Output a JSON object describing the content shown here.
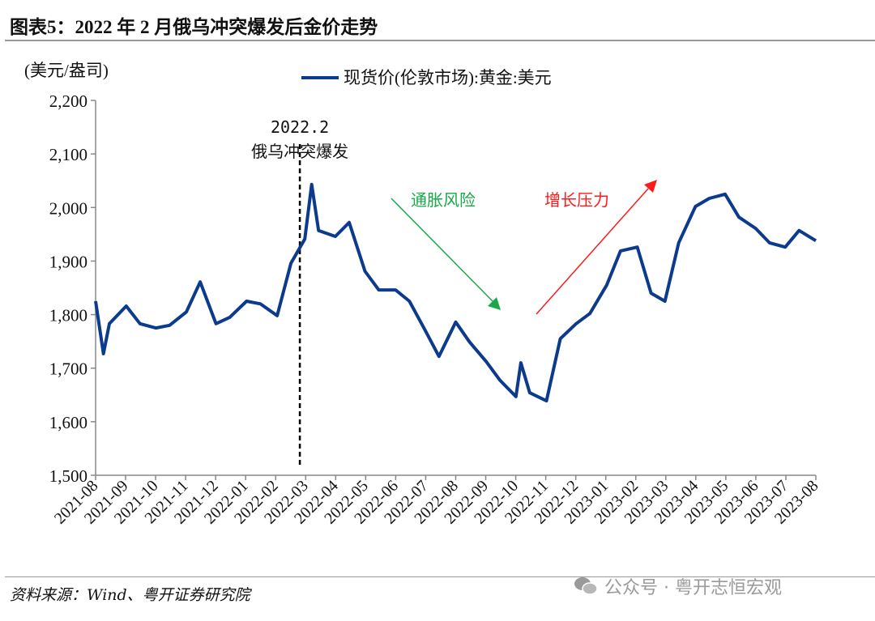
{
  "header": {
    "title": "图表5：2022 年 2 月俄乌冲突爆发后金价走势"
  },
  "footer": {
    "source": "资料来源：Wind、粤开证券研究院",
    "watermark": "公众号 · 粤开志恒宏观",
    "watermark_icon": "wechat-icon"
  },
  "chart_data": {
    "type": "line",
    "title": "",
    "ylabel": "(美元/盎司)",
    "xlabel": "",
    "ylim": [
      1500,
      2200
    ],
    "yticks": [
      1500,
      1600,
      1700,
      1800,
      1900,
      2000,
      2100,
      2200
    ],
    "ytick_labels": [
      "1,500",
      "1,600",
      "1,700",
      "1,800",
      "1,900",
      "2,000",
      "2,100",
      "2,200"
    ],
    "xtick_labels": [
      "2021-08",
      "2021-09",
      "2021-10",
      "2021-11",
      "2021-12",
      "2022-01",
      "2022-02",
      "2022-03",
      "2022-04",
      "2022-05",
      "2022-06",
      "2022-07",
      "2022-08",
      "2022-09",
      "2022-10",
      "2022-11",
      "2022-12",
      "2023-01",
      "2023-02",
      "2023-03",
      "2023-04",
      "2023-05",
      "2023-06",
      "2023-07",
      "2023-08"
    ],
    "grid": false,
    "legend_position": "top",
    "series": [
      {
        "name": "现货价(伦敦市场):黄金:美元",
        "color": "#0c3a8c",
        "x": [
          "2021-08-01",
          "2021-08-09",
          "2021-08-15",
          "2021-09-01",
          "2021-09-15",
          "2021-10-01",
          "2021-10-15",
          "2021-11-01",
          "2021-11-15",
          "2021-12-01",
          "2021-12-15",
          "2022-01-01",
          "2022-01-15",
          "2022-02-01",
          "2022-02-15",
          "2022-03-01",
          "2022-03-08",
          "2022-03-15",
          "2022-04-01",
          "2022-04-15",
          "2022-05-01",
          "2022-05-15",
          "2022-06-01",
          "2022-06-15",
          "2022-07-01",
          "2022-07-15",
          "2022-08-01",
          "2022-08-15",
          "2022-09-01",
          "2022-09-15",
          "2022-10-01",
          "2022-10-06",
          "2022-10-15",
          "2022-11-01",
          "2022-11-15",
          "2022-12-01",
          "2022-12-15",
          "2023-01-01",
          "2023-01-15",
          "2023-02-01",
          "2023-02-15",
          "2023-03-01",
          "2023-03-15",
          "2023-04-01",
          "2023-04-15",
          "2023-05-01",
          "2023-05-15",
          "2023-06-01",
          "2023-06-15",
          "2023-07-01",
          "2023-07-15",
          "2023-08-01"
        ],
        "values": [
          1825,
          1727,
          1783,
          1816,
          1783,
          1775,
          1780,
          1805,
          1861,
          1783,
          1795,
          1825,
          1820,
          1798,
          1896,
          1941,
          2043,
          1957,
          1946,
          1972,
          1881,
          1846,
          1846,
          1825,
          1771,
          1722,
          1786,
          1749,
          1712,
          1677,
          1647,
          1710,
          1654,
          1639,
          1755,
          1783,
          1802,
          1855,
          1919,
          1926,
          1840,
          1825,
          1934,
          2002,
          2017,
          2025,
          1982,
          1961,
          1934,
          1926,
          1957,
          1938
        ]
      }
    ],
    "annotations": {
      "event_date": "2022-02-24",
      "event_line_label_1": "2022.2",
      "event_line_label_2": "俄乌冲突爆发",
      "down_arrow_label": "通胀风险",
      "down_arrow_color": "#19a84a",
      "up_arrow_label": "增长压力",
      "up_arrow_color": "#ff1a1a"
    }
  }
}
